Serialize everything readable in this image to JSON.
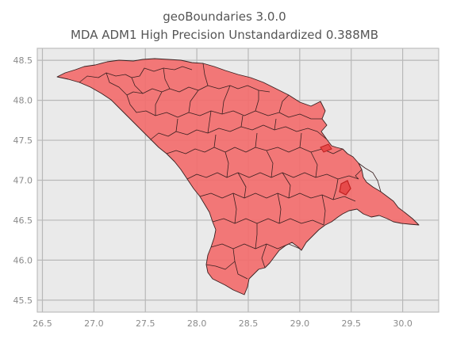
{
  "title": "geoBoundaries 3.0.0",
  "subtitle": "MDA ADM1 High Precision Unstandardized 0.388MB",
  "chart_data": {
    "type": "map",
    "xlim": [
      26.45,
      30.35
    ],
    "ylim": [
      45.35,
      48.65
    ],
    "x_ticks": [
      "26.5",
      "27.0",
      "27.5",
      "28.0",
      "28.5",
      "29.0",
      "29.5",
      "30.0"
    ],
    "y_ticks": [
      "48.5",
      "48.0",
      "47.5",
      "47.0",
      "46.5",
      "46.0",
      "45.5"
    ],
    "grid": true,
    "fill_color": "#f26d6d",
    "edge_color": "#3a2020",
    "background": "#eaeaea"
  }
}
